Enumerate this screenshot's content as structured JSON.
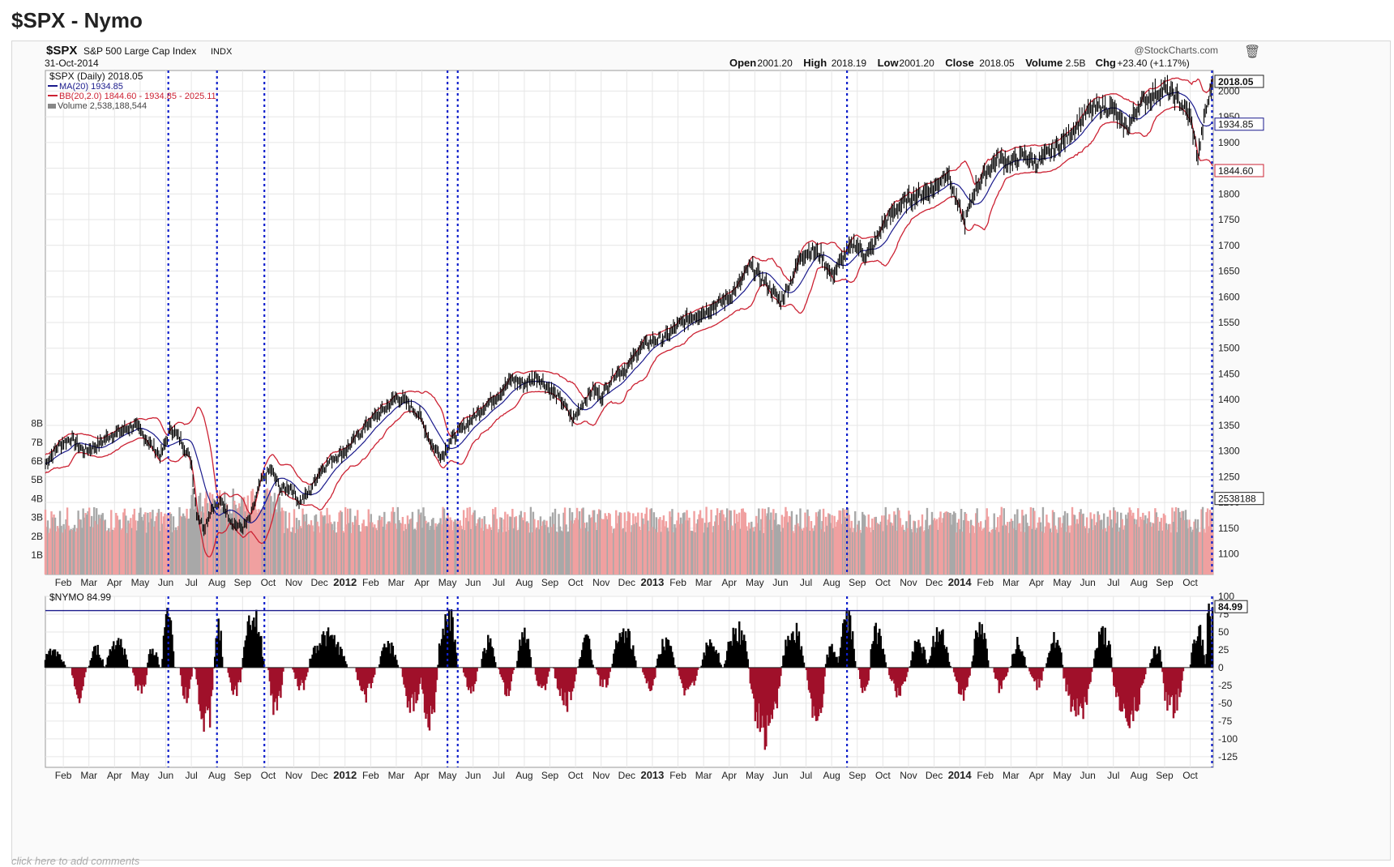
{
  "page": {
    "title": "$SPX - Nymo",
    "comment_link": "click here to add comments"
  },
  "header": {
    "symbol": "$SPX",
    "name": "S&P 500 Large Cap Index",
    "exchange": "INDX",
    "date": "31-Oct-2014",
    "watermark": "@StockCharts.com",
    "quote": [
      {
        "label": "Open",
        "value": "2001.20"
      },
      {
        "label": "High",
        "value": "2018.19"
      },
      {
        "label": "Low",
        "value": "2001.20"
      },
      {
        "label": "Close",
        "value": "2018.05"
      },
      {
        "label": "Volume",
        "value": "2.5B"
      },
      {
        "label": "Chg",
        "value": "+23.40 (+1.17%)"
      }
    ]
  },
  "legend": {
    "price": "$SPX (Daily) 2018.05",
    "ma": "MA(20) 1934.85",
    "bb": "BB(20,2.0) 1844.60 - 1934.85 - 2025.11",
    "volume": "Volume 2,538,188,544",
    "nymo": "$NYMO 84.99"
  },
  "colors": {
    "price": "#000000",
    "ma": "#1a1a8c",
    "bb": "#cc2233",
    "volume_up": "#f0a0a0",
    "volume_down": "#a8a8a8",
    "nymo_pos": "#000000",
    "nymo_neg": "#a0102a",
    "marker": "#1020cc",
    "grid": "#e6e6e6"
  },
  "chart_data": [
    {
      "type": "line",
      "panel": "price",
      "ylim": [
        1060,
        2040
      ],
      "y_ticks": [
        1100,
        1150,
        1200,
        1250,
        1300,
        1350,
        1400,
        1450,
        1500,
        1550,
        1600,
        1650,
        1700,
        1750,
        1800,
        1850,
        1900,
        1950,
        2000
      ],
      "volume_ticks": [
        "1B",
        "2B",
        "3B",
        "4B",
        "5B",
        "6B",
        "7B",
        "8B"
      ],
      "volume_value": 2538188544,
      "price_labels": [
        {
          "value": "2018.05",
          "y": 2018.05
        },
        {
          "value": "1934.85",
          "y": 1934.85
        },
        {
          "value": "1844.60",
          "y": 1844.6
        },
        {
          "value": "2538188",
          "y": 1207
        }
      ],
      "x_labels": [
        "Feb",
        "Mar",
        "Apr",
        "May",
        "Jun",
        "Jul",
        "Aug",
        "Sep",
        "Oct",
        "Nov",
        "Dec",
        "2012",
        "Feb",
        "Mar",
        "Apr",
        "May",
        "Jun",
        "Jul",
        "Aug",
        "Sep",
        "Oct",
        "Nov",
        "Dec",
        "2013",
        "Feb",
        "Mar",
        "Apr",
        "May",
        "Jun",
        "Jul",
        "Aug",
        "Sep",
        "Oct",
        "Nov",
        "Dec",
        "2014",
        "Feb",
        "Mar",
        "Apr",
        "May",
        "Jun",
        "Jul",
        "Aug",
        "Sep",
        "Oct"
      ],
      "x_label_months": [
        1,
        2,
        3,
        4,
        5,
        6,
        7,
        8,
        9,
        10,
        11,
        12,
        13,
        14,
        15,
        16,
        17,
        18,
        19,
        20,
        21,
        22,
        23,
        24,
        25,
        26,
        27,
        28,
        29,
        30,
        31,
        32,
        33,
        34,
        35,
        36,
        37,
        38,
        39,
        40,
        41,
        42,
        43,
        44,
        45
      ],
      "bold_labels": [
        "2012",
        "2013",
        "2014"
      ],
      "x_range_months": [
        0.3,
        45.9
      ],
      "marker_months": [
        5.1,
        7.0,
        8.85,
        16.0,
        16.4,
        31.6,
        45.85
      ],
      "close_anchors": [
        [
          0.3,
          1275
        ],
        [
          0.8,
          1310
        ],
        [
          1.3,
          1325
        ],
        [
          1.8,
          1300
        ],
        [
          2.3,
          1310
        ],
        [
          2.8,
          1330
        ],
        [
          3.3,
          1340
        ],
        [
          3.8,
          1350
        ],
        [
          4.3,
          1320
        ],
        [
          4.8,
          1290
        ],
        [
          5.2,
          1345
        ],
        [
          5.6,
          1320
        ],
        [
          6.0,
          1280
        ],
        [
          6.2,
          1180
        ],
        [
          6.5,
          1150
        ],
        [
          6.8,
          1190
        ],
        [
          7.2,
          1200
        ],
        [
          7.6,
          1160
        ],
        [
          8.0,
          1150
        ],
        [
          8.3,
          1170
        ],
        [
          8.7,
          1240
        ],
        [
          9.1,
          1265
        ],
        [
          9.5,
          1225
        ],
        [
          9.9,
          1230
        ],
        [
          10.2,
          1200
        ],
        [
          10.6,
          1220
        ],
        [
          11.0,
          1260
        ],
        [
          11.5,
          1285
        ],
        [
          12.0,
          1300
        ],
        [
          12.5,
          1330
        ],
        [
          13.0,
          1360
        ],
        [
          13.5,
          1380
        ],
        [
          14.0,
          1405
        ],
        [
          14.4,
          1395
        ],
        [
          14.9,
          1370
        ],
        [
          15.4,
          1310
        ],
        [
          15.8,
          1290
        ],
        [
          16.1,
          1320
        ],
        [
          16.5,
          1340
        ],
        [
          17.0,
          1365
        ],
        [
          17.5,
          1390
        ],
        [
          18.0,
          1410
        ],
        [
          18.5,
          1440
        ],
        [
          19.0,
          1430
        ],
        [
          19.5,
          1445
        ],
        [
          20.0,
          1420
        ],
        [
          20.5,
          1395
        ],
        [
          20.9,
          1360
        ],
        [
          21.3,
          1395
        ],
        [
          21.7,
          1420
        ],
        [
          22.0,
          1405
        ],
        [
          22.5,
          1450
        ],
        [
          23.0,
          1460
        ],
        [
          23.5,
          1500
        ],
        [
          24.0,
          1515
        ],
        [
          24.5,
          1520
        ],
        [
          25.0,
          1545
        ],
        [
          25.5,
          1560
        ],
        [
          26.0,
          1570
        ],
        [
          26.5,
          1585
        ],
        [
          27.0,
          1600
        ],
        [
          27.4,
          1625
        ],
        [
          27.8,
          1660
        ],
        [
          28.2,
          1640
        ],
        [
          28.7,
          1610
        ],
        [
          29.0,
          1590
        ],
        [
          29.4,
          1630
        ],
        [
          29.8,
          1680
        ],
        [
          30.2,
          1690
        ],
        [
          30.6,
          1680
        ],
        [
          31.0,
          1640
        ],
        [
          31.5,
          1680
        ],
        [
          31.9,
          1705
        ],
        [
          32.3,
          1680
        ],
        [
          32.6,
          1695
        ],
        [
          33.0,
          1740
        ],
        [
          33.5,
          1770
        ],
        [
          34.0,
          1790
        ],
        [
          34.5,
          1800
        ],
        [
          35.0,
          1810
        ],
        [
          35.5,
          1845
        ],
        [
          35.9,
          1780
        ],
        [
          36.2,
          1745
        ],
        [
          36.6,
          1810
        ],
        [
          37.0,
          1840
        ],
        [
          37.5,
          1870
        ],
        [
          38.0,
          1860
        ],
        [
          38.5,
          1875
        ],
        [
          39.0,
          1860
        ],
        [
          39.5,
          1880
        ],
        [
          40.0,
          1900
        ],
        [
          40.5,
          1930
        ],
        [
          41.0,
          1960
        ],
        [
          41.5,
          1970
        ],
        [
          42.0,
          1965
        ],
        [
          42.3,
          1935
        ],
        [
          42.6,
          1930
        ],
        [
          43.0,
          1975
        ],
        [
          43.5,
          1990
        ],
        [
          44.0,
          2005
        ],
        [
          44.5,
          1985
        ],
        [
          45.0,
          1950
        ],
        [
          45.3,
          1870
        ],
        [
          45.6,
          1960
        ],
        [
          45.9,
          2018
        ]
      ]
    },
    {
      "type": "bar",
      "panel": "nymo",
      "ylim": [
        -140,
        100
      ],
      "y_ticks": [
        -125,
        -100,
        -75,
        -50,
        -25,
        0,
        25,
        50,
        75,
        100
      ],
      "reference_line": 80,
      "last_value": "84.99",
      "bursts": [
        {
          "m": 0.6,
          "w": 1.0,
          "h": 25
        },
        {
          "m": 1.6,
          "w": 0.6,
          "h": -45
        },
        {
          "m": 2.3,
          "w": 0.6,
          "h": 30
        },
        {
          "m": 3.1,
          "w": 0.9,
          "h": 45
        },
        {
          "m": 4.0,
          "w": 0.6,
          "h": -40
        },
        {
          "m": 4.5,
          "w": 0.5,
          "h": 30
        },
        {
          "m": 5.1,
          "w": 0.5,
          "h": 85
        },
        {
          "m": 5.8,
          "w": 0.5,
          "h": -45
        },
        {
          "m": 6.6,
          "w": 0.9,
          "h": -90
        },
        {
          "m": 7.0,
          "w": 0.5,
          "h": 75
        },
        {
          "m": 7.7,
          "w": 0.6,
          "h": -40
        },
        {
          "m": 8.4,
          "w": 0.9,
          "h": 85
        },
        {
          "m": 9.3,
          "w": 0.6,
          "h": -65
        },
        {
          "m": 10.3,
          "w": 0.7,
          "h": -30
        },
        {
          "m": 11.3,
          "w": 1.6,
          "h": 50
        },
        {
          "m": 12.8,
          "w": 0.8,
          "h": -45
        },
        {
          "m": 13.7,
          "w": 0.8,
          "h": 35
        },
        {
          "m": 14.6,
          "w": 0.8,
          "h": -65
        },
        {
          "m": 15.3,
          "w": 0.7,
          "h": -80
        },
        {
          "m": 16.0,
          "w": 0.8,
          "h": 85
        },
        {
          "m": 16.9,
          "w": 0.6,
          "h": -35
        },
        {
          "m": 17.6,
          "w": 0.6,
          "h": 40
        },
        {
          "m": 18.3,
          "w": 0.6,
          "h": -40
        },
        {
          "m": 19.0,
          "w": 0.6,
          "h": 55
        },
        {
          "m": 19.7,
          "w": 0.6,
          "h": -40
        },
        {
          "m": 20.6,
          "w": 0.9,
          "h": -60
        },
        {
          "m": 21.4,
          "w": 0.6,
          "h": 45
        },
        {
          "m": 22.1,
          "w": 0.6,
          "h": -30
        },
        {
          "m": 22.9,
          "w": 1.0,
          "h": 55
        },
        {
          "m": 23.9,
          "w": 0.6,
          "h": -30
        },
        {
          "m": 24.5,
          "w": 0.8,
          "h": 40
        },
        {
          "m": 25.4,
          "w": 0.8,
          "h": -40
        },
        {
          "m": 26.3,
          "w": 0.8,
          "h": 40
        },
        {
          "m": 27.3,
          "w": 1.0,
          "h": 60
        },
        {
          "m": 28.4,
          "w": 1.3,
          "h": -105
        },
        {
          "m": 29.5,
          "w": 0.9,
          "h": 60
        },
        {
          "m": 30.4,
          "w": 0.8,
          "h": -75
        },
        {
          "m": 31.0,
          "w": 0.6,
          "h": 30
        },
        {
          "m": 31.6,
          "w": 0.7,
          "h": 80
        },
        {
          "m": 32.3,
          "w": 0.5,
          "h": -40
        },
        {
          "m": 32.8,
          "w": 0.7,
          "h": 60
        },
        {
          "m": 33.6,
          "w": 0.8,
          "h": -40
        },
        {
          "m": 34.4,
          "w": 0.7,
          "h": 40
        },
        {
          "m": 35.2,
          "w": 0.9,
          "h": 55
        },
        {
          "m": 36.1,
          "w": 0.7,
          "h": -45
        },
        {
          "m": 36.8,
          "w": 0.7,
          "h": 60
        },
        {
          "m": 37.6,
          "w": 0.6,
          "h": -35
        },
        {
          "m": 38.3,
          "w": 0.6,
          "h": 45
        },
        {
          "m": 39.0,
          "w": 0.6,
          "h": -30
        },
        {
          "m": 39.7,
          "w": 0.7,
          "h": 45
        },
        {
          "m": 40.6,
          "w": 1.2,
          "h": -75
        },
        {
          "m": 41.6,
          "w": 0.8,
          "h": 55
        },
        {
          "m": 42.6,
          "w": 1.4,
          "h": -80
        },
        {
          "m": 43.7,
          "w": 0.6,
          "h": 30
        },
        {
          "m": 44.3,
          "w": 0.9,
          "h": -70
        },
        {
          "m": 45.3,
          "w": 0.6,
          "h": 60
        },
        {
          "m": 45.75,
          "w": 0.3,
          "h": 85
        }
      ]
    }
  ]
}
